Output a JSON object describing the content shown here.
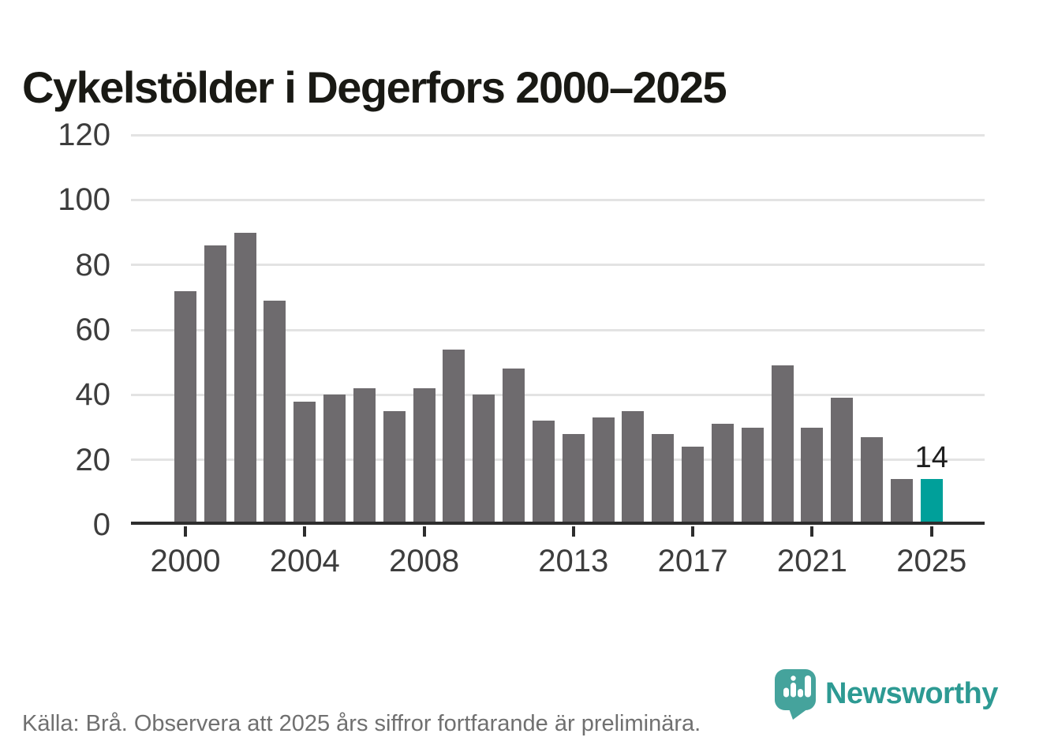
{
  "title": "Cykelstölder i Degerfors 2000–2025",
  "chart_data": {
    "type": "bar",
    "title": "Cykelstölder i Degerfors 2000–2025",
    "categories": [
      2000,
      2001,
      2002,
      2003,
      2004,
      2005,
      2006,
      2007,
      2008,
      2009,
      2010,
      2011,
      2012,
      2013,
      2014,
      2015,
      2016,
      2017,
      2018,
      2019,
      2020,
      2021,
      2022,
      2023,
      2024,
      2025
    ],
    "values": [
      72,
      86,
      90,
      69,
      38,
      40,
      42,
      35,
      42,
      54,
      40,
      48,
      32,
      28,
      33,
      35,
      28,
      24,
      31,
      30,
      49,
      30,
      39,
      27,
      14,
      14
    ],
    "xlabel": "",
    "ylabel": "",
    "ylim": [
      0,
      120
    ],
    "y_ticks": [
      0,
      20,
      40,
      60,
      80,
      100,
      120
    ],
    "x_tick_labels": [
      "2000",
      "2004",
      "2008",
      "2013",
      "2017",
      "2021",
      "2025"
    ],
    "grid": "horizontal",
    "legend": "none",
    "bar_color": "#6e6b6e",
    "highlight_year": 2025,
    "highlight_color": "#00a09a",
    "annotation": {
      "year": 2025,
      "label": "14"
    }
  },
  "footer": {
    "source_text": "Källa: Brå. Observera att 2025 års siffror fortfarande är preliminära."
  },
  "branding": {
    "wordmark": "Newsworthy",
    "wordmark_color": "#2d9a93",
    "icon": "newsworthy-pin-barchart-icon",
    "icon_color": "#45a39c"
  }
}
